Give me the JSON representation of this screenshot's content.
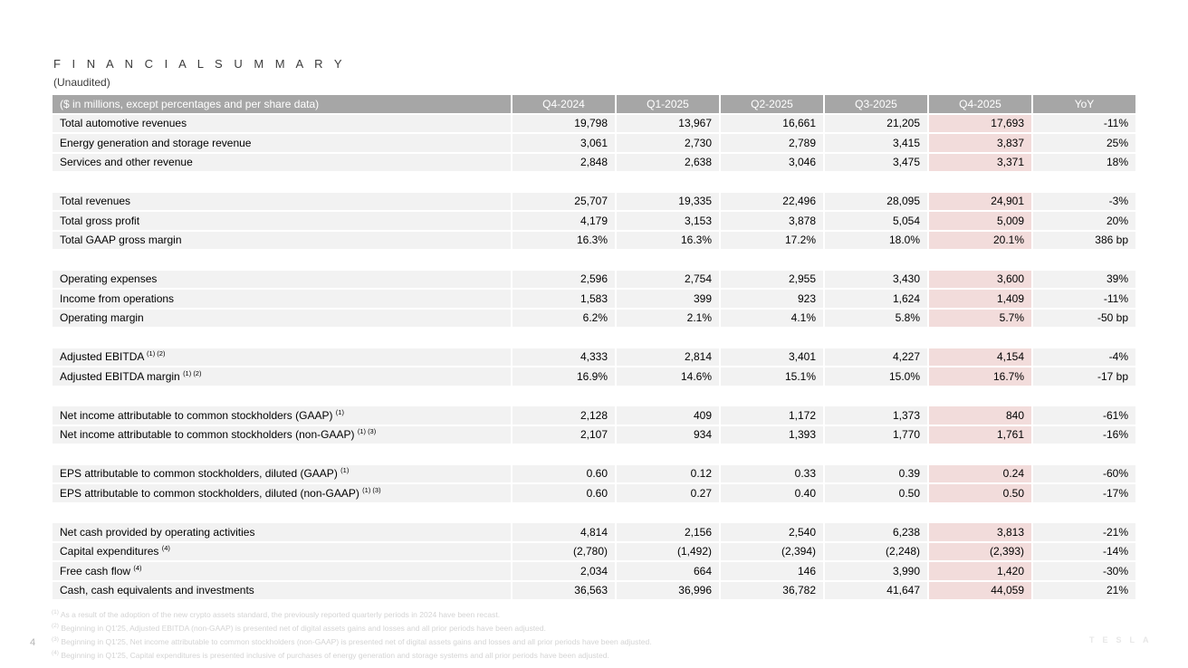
{
  "page": {
    "title": "F I N A N C I A L   S U M M A R Y",
    "title_plain": "FINANCIAL SUMMARY",
    "subtitle": "(Unaudited)",
    "page_number": "4",
    "watermark": "TESLA"
  },
  "colors": {
    "header_bg": "#a6a6a6",
    "header_text": "#ffffff",
    "row_bg": "#f2f2f2",
    "highlight_bg": "#f2dcdb",
    "footnote_text": "#d4d4d4"
  },
  "table": {
    "header": [
      "($ in millions, except percentages and per share data)",
      "Q4-2024",
      "Q1-2025",
      "Q2-2025",
      "Q3-2025",
      "Q4-2025",
      "YoY"
    ],
    "highlight_column": "Q4-2025",
    "highlight_column_index": 4,
    "sections": [
      {
        "rows": [
          {
            "label": "Total automotive revenues",
            "sup": "",
            "values": [
              "19,798",
              "13,967",
              "16,661",
              "21,205",
              "17,693",
              "-11%"
            ]
          },
          {
            "label": "Energy generation and storage revenue",
            "sup": "",
            "values": [
              "3,061",
              "2,730",
              "2,789",
              "3,415",
              "3,837",
              "25%"
            ]
          },
          {
            "label": "Services and other revenue",
            "sup": "",
            "values": [
              "2,848",
              "2,638",
              "3,046",
              "3,475",
              "3,371",
              "18%"
            ]
          }
        ]
      },
      {
        "rows": [
          {
            "label": "Total revenues",
            "sup": "",
            "values": [
              "25,707",
              "19,335",
              "22,496",
              "28,095",
              "24,901",
              "-3%"
            ]
          },
          {
            "label": "Total gross profit",
            "sup": "",
            "values": [
              "4,179",
              "3,153",
              "3,878",
              "5,054",
              "5,009",
              "20%"
            ]
          },
          {
            "label": "Total GAAP gross margin",
            "sup": "",
            "values": [
              "16.3%",
              "16.3%",
              "17.2%",
              "18.0%",
              "20.1%",
              "386 bp"
            ]
          }
        ]
      },
      {
        "rows": [
          {
            "label": "Operating expenses",
            "sup": "",
            "values": [
              "2,596",
              "2,754",
              "2,955",
              "3,430",
              "3,600",
              "39%"
            ]
          },
          {
            "label": "Income from operations",
            "sup": "",
            "values": [
              "1,583",
              "399",
              "923",
              "1,624",
              "1,409",
              "-11%"
            ]
          },
          {
            "label": "Operating margin",
            "sup": "",
            "values": [
              "6.2%",
              "2.1%",
              "4.1%",
              "5.8%",
              "5.7%",
              "-50 bp"
            ]
          }
        ]
      },
      {
        "rows": [
          {
            "label": "Adjusted EBITDA",
            "sup": "(1) (2)",
            "values": [
              "4,333",
              "2,814",
              "3,401",
              "4,227",
              "4,154",
              "-4%"
            ]
          },
          {
            "label": "Adjusted EBITDA margin",
            "sup": "(1) (2)",
            "values": [
              "16.9%",
              "14.6%",
              "15.1%",
              "15.0%",
              "16.7%",
              "-17 bp"
            ]
          }
        ]
      },
      {
        "rows": [
          {
            "label": "Net income attributable to common stockholders (GAAP)",
            "sup": "(1)",
            "values": [
              "2,128",
              "409",
              "1,172",
              "1,373",
              "840",
              "-61%"
            ]
          },
          {
            "label": "Net income attributable to common stockholders (non-GAAP)",
            "sup": "(1) (3)",
            "values": [
              "2,107",
              "934",
              "1,393",
              "1,770",
              "1,761",
              "-16%"
            ]
          }
        ]
      },
      {
        "rows": [
          {
            "label": "EPS attributable to common stockholders, diluted (GAAP)",
            "sup": "(1)",
            "values": [
              "0.60",
              "0.12",
              "0.33",
              "0.39",
              "0.24",
              "-60%"
            ]
          },
          {
            "label": "EPS attributable to common stockholders, diluted (non-GAAP)",
            "sup": "(1) (3)",
            "values": [
              "0.60",
              "0.27",
              "0.40",
              "0.50",
              "0.50",
              "-17%"
            ]
          }
        ]
      },
      {
        "rows": [
          {
            "label": "Net cash provided by operating activities",
            "sup": "",
            "values": [
              "4,814",
              "2,156",
              "2,540",
              "6,238",
              "3,813",
              "-21%"
            ]
          },
          {
            "label": "Capital expenditures",
            "sup": "(4)",
            "values": [
              "(2,780)",
              "(1,492)",
              "(2,394)",
              "(2,248)",
              "(2,393)",
              "-14%"
            ]
          },
          {
            "label": "Free cash flow",
            "sup": "(4)",
            "values": [
              "2,034",
              "664",
              "146",
              "3,990",
              "1,420",
              "-30%"
            ]
          },
          {
            "label": "Cash, cash equivalents and investments",
            "sup": "",
            "values": [
              "36,563",
              "36,996",
              "36,782",
              "41,647",
              "44,059",
              "21%"
            ]
          }
        ]
      }
    ]
  },
  "footnotes": [
    {
      "marker": "(1)",
      "text": "As a result of the adoption of the new crypto assets standard, the previously reported quarterly periods in 2024 have been recast."
    },
    {
      "marker": "(2)",
      "text": "Beginning in Q1'25, Adjusted EBITDA (non-GAAP) is presented net of digital assets gains and losses and all prior periods have been adjusted."
    },
    {
      "marker": "(3)",
      "text": "Beginning in Q1'25, Net income attributable to common stockholders (non-GAAP) is presented net of digital assets gains and losses and all prior periods have been adjusted."
    },
    {
      "marker": "(4)",
      "text": "Beginning in Q1'25, Capital expenditures is presented inclusive of purchases of energy generation and storage systems and all prior periods have been adjusted."
    }
  ]
}
